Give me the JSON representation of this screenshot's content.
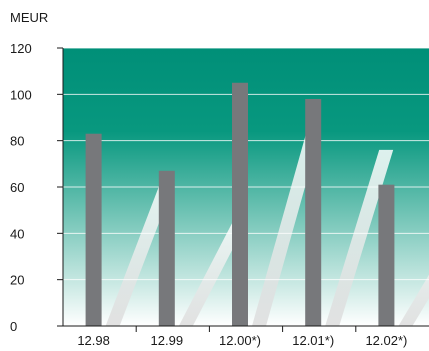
{
  "chart_data": {
    "type": "bar",
    "unit_label": "MEUR",
    "categories": [
      "12.98",
      "12.99",
      "12.00*)",
      "12.01*)",
      "12.02*)"
    ],
    "values": [
      83,
      67,
      105,
      98,
      61
    ],
    "ylim": [
      0,
      120
    ],
    "yticks": [
      0,
      20,
      40,
      60,
      80,
      100,
      120
    ],
    "grid": true,
    "legend": "none",
    "colors": {
      "bar": "#77787b",
      "background_top": "#008f78",
      "background_bottom": "#ffffff",
      "gridline": "#ffffff",
      "stripe": "#ffffff",
      "axis": "#1a1a1a"
    }
  }
}
